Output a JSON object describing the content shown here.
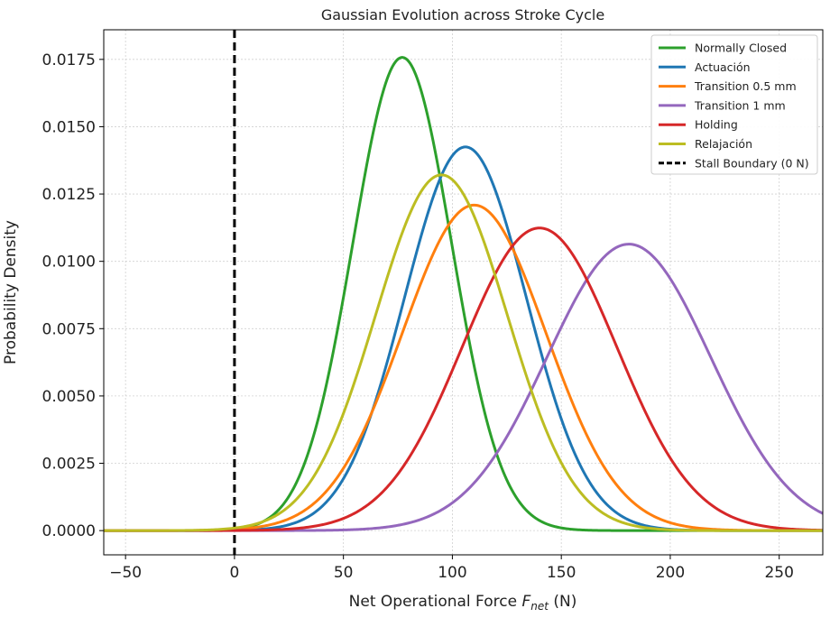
{
  "chart_data": {
    "type": "line",
    "title": "Gaussian Evolution across Stroke Cycle",
    "xlabel_prefix": "Net Operational Force ",
    "xlabel_var": "F",
    "xlabel_sub": "net",
    "xlabel_suffix": " (N)",
    "ylabel": "Probability Density",
    "xlim": [
      -60,
      270
    ],
    "ylim": [
      -0.0009,
      0.0186
    ],
    "xticks": [
      -50,
      0,
      50,
      100,
      150,
      200,
      250
    ],
    "xtick_labels": [
      "−50",
      "0",
      "50",
      "100",
      "150",
      "200",
      "250"
    ],
    "yticks": [
      0,
      0.0025,
      0.005,
      0.0075,
      0.01,
      0.0125,
      0.015,
      0.0175
    ],
    "ytick_labels": [
      "0.0000",
      "0.0025",
      "0.0050",
      "0.0075",
      "0.0100",
      "0.0125",
      "0.0150",
      "0.0175"
    ],
    "grid": true,
    "legend_position": "top-right",
    "series": [
      {
        "name": "Normally Closed",
        "mean": 77,
        "std": 22.7,
        "color": "#2ca02c"
      },
      {
        "name": "Actuación",
        "mean": 106,
        "std": 28.0,
        "color": "#1f77b4"
      },
      {
        "name": "Transition 0.5 mm",
        "mean": 110,
        "std": 33.0,
        "color": "#ff7f0e"
      },
      {
        "name": "Transition 1 mm",
        "mean": 181,
        "std": 37.5,
        "color": "#9467bd"
      },
      {
        "name": "Holding",
        "mean": 140,
        "std": 35.5,
        "color": "#d62728"
      },
      {
        "name": "Relajación",
        "mean": 95,
        "std": 30.2,
        "color": "#bcbd22"
      }
    ],
    "reference_line": {
      "name": "Stall Boundary (0 N)",
      "x": 0,
      "color": "#000000"
    }
  }
}
